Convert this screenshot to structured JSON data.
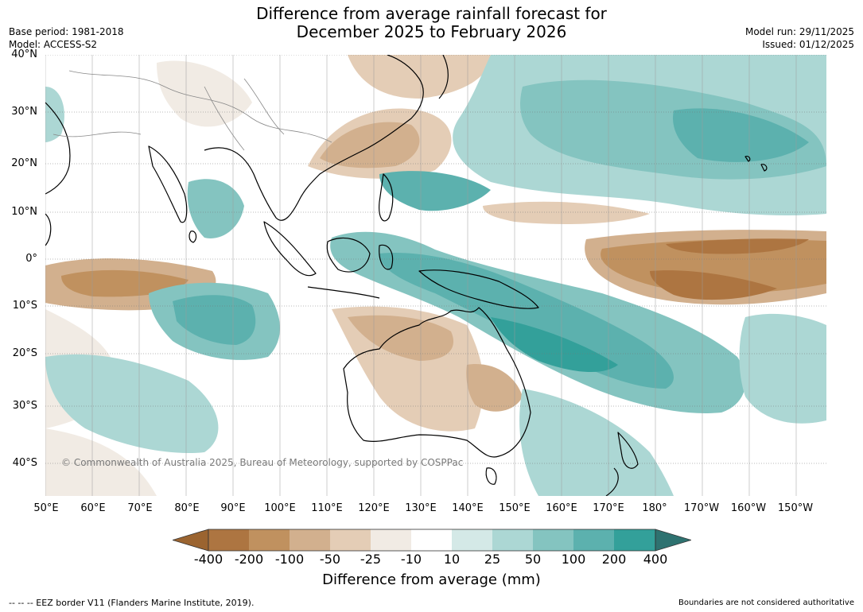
{
  "title": {
    "line1": "Difference from average rainfall forecast for",
    "line2": "December 2025 to February 2026"
  },
  "meta_left": {
    "base_period": "Base period: 1981-2018",
    "model": "Model: ACCESS-S2"
  },
  "meta_right": {
    "model_run": "Model run: 29/11/2025",
    "issued": "Issued: 01/12/2025"
  },
  "map": {
    "latitude_labels": [
      "40°N",
      "30°N",
      "20°N",
      "10°N",
      "0°",
      "10°S",
      "20°S",
      "30°S",
      "40°S"
    ],
    "longitude_labels": [
      "50°E",
      "60°E",
      "70°E",
      "80°E",
      "90°E",
      "100°E",
      "110°E",
      "120°E",
      "130°E",
      "140°E",
      "150°E",
      "160°E",
      "170°E",
      "180°",
      "170°W",
      "160°W",
      "150°W"
    ],
    "copyright": "© Commonwealth of Australia 2025, Bureau of Meteorology, supported by COSPPac",
    "gridlines": "dotted"
  },
  "colorbar": {
    "ticks": [
      "-400",
      "-200",
      "-100",
      "-50",
      "-25",
      "-10",
      "10",
      "25",
      "50",
      "100",
      "200",
      "400"
    ],
    "colors": [
      "#9b6430",
      "#ad7541",
      "#c0915f",
      "#d2b08e",
      "#e4cdb6",
      "#f1ebe4",
      "#ffffff",
      "#d4e9e7",
      "#acd7d4",
      "#84c4c0",
      "#5cb1ae",
      "#33a09a",
      "#2e7270"
    ],
    "label": "Difference from average (mm)"
  },
  "footer": {
    "eez": "--  --  -- EEZ border V11 (Flanders Marine Institute, 2019).",
    "disclaimer": "Boundaries are not considered authoritative"
  }
}
